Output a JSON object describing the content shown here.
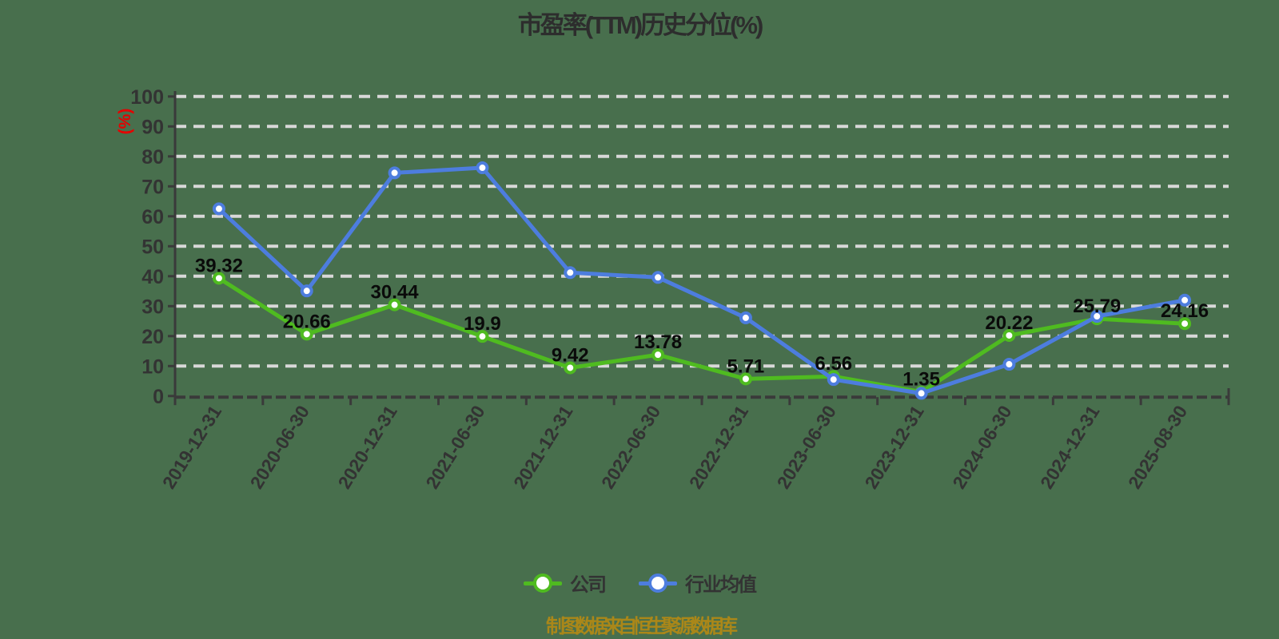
{
  "title": "市盈率(TTM)历史分位(%)",
  "footnote": "制图数据来自恒生聚源数据库",
  "y_axis": {
    "unit_label": "(%)",
    "unit_label_color": "#e60000",
    "min": 0,
    "max": 100,
    "tick_step": 10
  },
  "colors": {
    "background": "#486f4d",
    "grid": "#d8d8d8",
    "axis": "#3a3a3a",
    "tick_label": "#333333",
    "data_label": "#0a0a0a",
    "title": "#2d2d2d",
    "footnote": "#aa8719",
    "company": "#4fbb20",
    "industry": "#4d7dde"
  },
  "chart_data": {
    "type": "line",
    "title": "市盈率(TTM)历史分位(%)",
    "xlabel": "",
    "ylabel": "(%)",
    "ylim": [
      0,
      100
    ],
    "ytick_step": 10,
    "yticks": [
      0,
      10,
      20,
      30,
      40,
      50,
      60,
      70,
      80,
      90,
      100
    ],
    "grid": "horizontal-dashed",
    "legend_position": "bottom",
    "x_label_rotation_deg": -58,
    "categories": [
      "2019-12-31",
      "2020-06-30",
      "2020-12-31",
      "2021-06-30",
      "2021-12-31",
      "2022-06-30",
      "2022-12-31",
      "2023-06-30",
      "2023-12-31",
      "2024-06-30",
      "2024-12-31",
      "2025-08-30"
    ],
    "series": [
      {
        "name": "公司",
        "color": "#4fbb20",
        "marker": "circle-white-fill",
        "values": [
          39.32,
          20.66,
          30.44,
          19.9,
          9.42,
          13.78,
          5.71,
          6.56,
          1.35,
          20.22,
          25.79,
          24.16
        ],
        "labels_shown": true
      },
      {
        "name": "行业均值",
        "color": "#4d7dde",
        "marker": "circle-white-fill",
        "values": [
          62.5,
          35.1,
          74.5,
          76.2,
          41.2,
          39.6,
          26.1,
          5.5,
          0.9,
          10.6,
          26.6,
          32.0
        ],
        "labels_shown": false
      }
    ]
  }
}
